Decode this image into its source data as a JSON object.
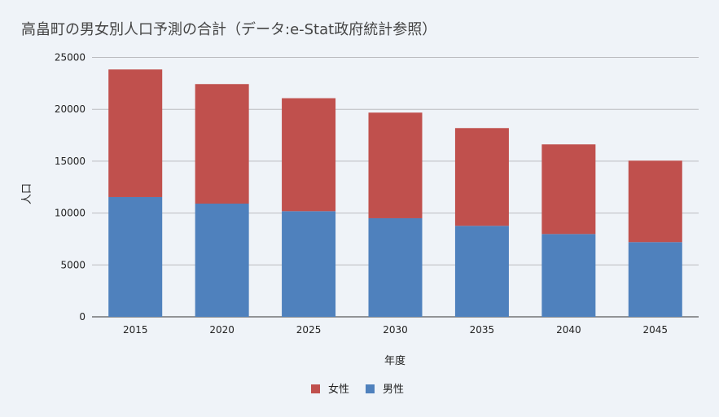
{
  "chart_data": {
    "type": "bar",
    "stacked": true,
    "title": "高畠町の男女別人口予測の合計（データ:e-Stat政府統計参照）",
    "xlabel": "年度",
    "ylabel": "人口",
    "categories": [
      "2015",
      "2020",
      "2025",
      "2030",
      "2035",
      "2040",
      "2045"
    ],
    "series": [
      {
        "name": "男性",
        "color": "#4f81bd",
        "values": [
          11540,
          10910,
          10180,
          9500,
          8770,
          7980,
          7200
        ]
      },
      {
        "name": "女性",
        "color": "#c0504d",
        "values": [
          12300,
          11520,
          10890,
          10180,
          9420,
          8640,
          7850
        ]
      }
    ],
    "legend_order": [
      "女性",
      "男性"
    ],
    "ylim": [
      0,
      25000
    ],
    "yticks": [
      "0",
      "5000",
      "10000",
      "15000",
      "20000",
      "25000"
    ],
    "grid": true,
    "legend_position": "bottom"
  }
}
